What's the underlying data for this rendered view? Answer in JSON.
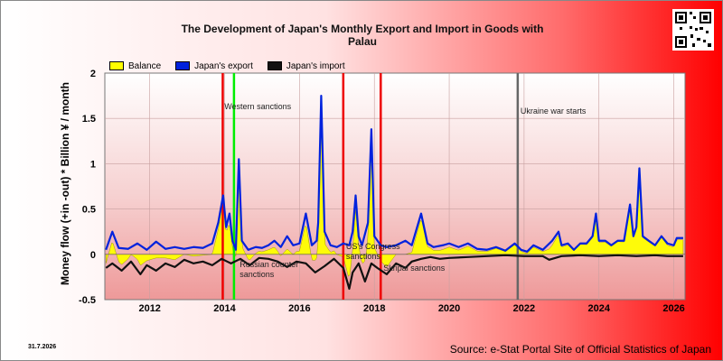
{
  "title": {
    "line1": "The Development of Japan's Monthly Export and Import in Goods with",
    "line2": "Palau"
  },
  "legend": [
    {
      "label": "Balance",
      "color": "#ffff00"
    },
    {
      "label": "Japan's export",
      "color": "#0022dd"
    },
    {
      "label": "Japan's import",
      "color": "#111111"
    }
  ],
  "footer": {
    "date": "31.7.2026",
    "source": "Source: e-Stat Portal Site of Official Statistics of Japan"
  },
  "chart_data": {
    "type": "line",
    "title": "The Development of Japan's Monthly Export and Import in Goods with Palau",
    "ylabel": "Money flow (+in -out) * Billion ¥ / month",
    "xlabel": "",
    "xlim": [
      2010.8,
      2026.3
    ],
    "ylim": [
      -0.5,
      2
    ],
    "x_ticks": [
      2012,
      2014,
      2016,
      2018,
      2020,
      2022,
      2024,
      2026
    ],
    "y_ticks": [
      -0.5,
      0,
      0.5,
      1,
      1.5,
      2
    ],
    "grid": true,
    "legend_position": "top-left",
    "series": [
      {
        "name": "Japan's export",
        "color": "#0022dd",
        "points": [
          [
            2010.83,
            0.05
          ],
          [
            2011.0,
            0.25
          ],
          [
            2011.17,
            0.07
          ],
          [
            2011.42,
            0.06
          ],
          [
            2011.67,
            0.12
          ],
          [
            2011.92,
            0.05
          ],
          [
            2012.17,
            0.14
          ],
          [
            2012.42,
            0.06
          ],
          [
            2012.67,
            0.08
          ],
          [
            2012.92,
            0.06
          ],
          [
            2013.17,
            0.08
          ],
          [
            2013.42,
            0.07
          ],
          [
            2013.67,
            0.12
          ],
          [
            2013.83,
            0.35
          ],
          [
            2013.96,
            0.65
          ],
          [
            2014.04,
            0.3
          ],
          [
            2014.13,
            0.45
          ],
          [
            2014.21,
            0.15
          ],
          [
            2014.3,
            0.05
          ],
          [
            2014.38,
            1.05
          ],
          [
            2014.46,
            0.15
          ],
          [
            2014.63,
            0.05
          ],
          [
            2014.83,
            0.08
          ],
          [
            2015.0,
            0.07
          ],
          [
            2015.17,
            0.1
          ],
          [
            2015.33,
            0.15
          ],
          [
            2015.5,
            0.08
          ],
          [
            2015.67,
            0.2
          ],
          [
            2015.83,
            0.1
          ],
          [
            2016.0,
            0.12
          ],
          [
            2016.17,
            0.45
          ],
          [
            2016.33,
            0.1
          ],
          [
            2016.46,
            0.15
          ],
          [
            2016.5,
            0.35
          ],
          [
            2016.58,
            1.75
          ],
          [
            2016.67,
            0.25
          ],
          [
            2016.83,
            0.1
          ],
          [
            2017.0,
            0.08
          ],
          [
            2017.17,
            0.12
          ],
          [
            2017.33,
            0.1
          ],
          [
            2017.42,
            0.25
          ],
          [
            2017.5,
            0.65
          ],
          [
            2017.58,
            0.2
          ],
          [
            2017.67,
            0.1
          ],
          [
            2017.83,
            0.35
          ],
          [
            2017.92,
            1.38
          ],
          [
            2018.0,
            0.2
          ],
          [
            2018.17,
            0.1
          ],
          [
            2018.33,
            0.08
          ],
          [
            2018.58,
            0.1
          ],
          [
            2018.83,
            0.15
          ],
          [
            2019.0,
            0.1
          ],
          [
            2019.25,
            0.45
          ],
          [
            2019.42,
            0.12
          ],
          [
            2019.58,
            0.08
          ],
          [
            2019.83,
            0.1
          ],
          [
            2020.0,
            0.12
          ],
          [
            2020.25,
            0.08
          ],
          [
            2020.5,
            0.12
          ],
          [
            2020.75,
            0.06
          ],
          [
            2021.0,
            0.05
          ],
          [
            2021.25,
            0.08
          ],
          [
            2021.5,
            0.04
          ],
          [
            2021.75,
            0.12
          ],
          [
            2021.92,
            0.05
          ],
          [
            2022.08,
            0.03
          ],
          [
            2022.25,
            0.1
          ],
          [
            2022.5,
            0.05
          ],
          [
            2022.75,
            0.15
          ],
          [
            2022.92,
            0.25
          ],
          [
            2023.0,
            0.1
          ],
          [
            2023.17,
            0.12
          ],
          [
            2023.33,
            0.05
          ],
          [
            2023.5,
            0.12
          ],
          [
            2023.67,
            0.12
          ],
          [
            2023.83,
            0.2
          ],
          [
            2023.92,
            0.45
          ],
          [
            2024.0,
            0.15
          ],
          [
            2024.17,
            0.15
          ],
          [
            2024.33,
            0.1
          ],
          [
            2024.5,
            0.15
          ],
          [
            2024.67,
            0.15
          ],
          [
            2024.83,
            0.55
          ],
          [
            2024.92,
            0.2
          ],
          [
            2025.0,
            0.3
          ],
          [
            2025.08,
            0.95
          ],
          [
            2025.17,
            0.2
          ],
          [
            2025.33,
            0.15
          ],
          [
            2025.5,
            0.1
          ],
          [
            2025.67,
            0.2
          ],
          [
            2025.83,
            0.12
          ],
          [
            2026.0,
            0.1
          ],
          [
            2026.08,
            0.18
          ],
          [
            2026.25,
            0.18
          ]
        ]
      },
      {
        "name": "Japan's import",
        "color": "#111111",
        "points": [
          [
            2010.83,
            -0.15
          ],
          [
            2011.0,
            -0.1
          ],
          [
            2011.25,
            -0.18
          ],
          [
            2011.5,
            -0.08
          ],
          [
            2011.75,
            -0.22
          ],
          [
            2011.92,
            -0.12
          ],
          [
            2012.17,
            -0.18
          ],
          [
            2012.42,
            -0.1
          ],
          [
            2012.67,
            -0.14
          ],
          [
            2012.92,
            -0.06
          ],
          [
            2013.17,
            -0.1
          ],
          [
            2013.42,
            -0.08
          ],
          [
            2013.67,
            -0.12
          ],
          [
            2013.92,
            -0.05
          ],
          [
            2014.17,
            -0.1
          ],
          [
            2014.42,
            -0.05
          ],
          [
            2014.67,
            -0.12
          ],
          [
            2014.92,
            -0.04
          ],
          [
            2015.17,
            -0.05
          ],
          [
            2015.42,
            -0.08
          ],
          [
            2015.67,
            -0.14
          ],
          [
            2015.92,
            -0.08
          ],
          [
            2016.17,
            -0.1
          ],
          [
            2016.42,
            -0.2
          ],
          [
            2016.67,
            -0.13
          ],
          [
            2016.92,
            -0.05
          ],
          [
            2017.17,
            -0.15
          ],
          [
            2017.33,
            -0.38
          ],
          [
            2017.42,
            -0.2
          ],
          [
            2017.58,
            -0.1
          ],
          [
            2017.75,
            -0.3
          ],
          [
            2017.92,
            -0.1
          ],
          [
            2018.08,
            -0.15
          ],
          [
            2018.33,
            -0.22
          ],
          [
            2018.58,
            -0.1
          ],
          [
            2018.83,
            -0.15
          ],
          [
            2019.0,
            -0.08
          ],
          [
            2019.25,
            -0.05
          ],
          [
            2019.5,
            -0.03
          ],
          [
            2019.75,
            -0.05
          ],
          [
            2020.0,
            -0.04
          ],
          [
            2020.5,
            -0.03
          ],
          [
            2021.0,
            -0.02
          ],
          [
            2021.5,
            -0.01
          ],
          [
            2022.0,
            -0.02
          ],
          [
            2022.5,
            -0.02
          ],
          [
            2022.67,
            -0.06
          ],
          [
            2023.0,
            -0.02
          ],
          [
            2023.5,
            -0.01
          ],
          [
            2024.0,
            -0.02
          ],
          [
            2024.5,
            -0.01
          ],
          [
            2025.0,
            -0.02
          ],
          [
            2025.5,
            -0.01
          ],
          [
            2025.83,
            -0.02
          ],
          [
            2026.25,
            -0.02
          ]
        ]
      }
    ],
    "balance": "export + import (filled yellow area)",
    "events": [
      {
        "x": 2013.95,
        "label": "",
        "color": "#ee0000"
      },
      {
        "x": 2014.25,
        "label": "Western sanctions",
        "color": "#00ee00"
      },
      {
        "x": 2017.17,
        "label": "US's Congress sanctions",
        "color": "#ee0000"
      },
      {
        "x": 2018.17,
        "label": "Skripal sanctions",
        "color": "#ee0000"
      },
      {
        "x": 2021.83,
        "label": "Ukraine war starts",
        "color": "#666666"
      }
    ],
    "annotations": [
      {
        "x": 2014.33,
        "label": "Russian counter sanctions"
      }
    ]
  }
}
